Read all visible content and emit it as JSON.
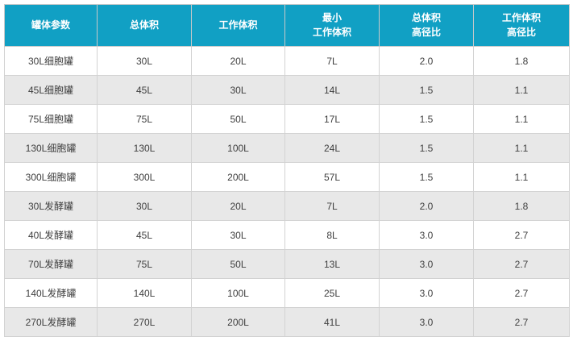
{
  "chart_data": {
    "type": "table",
    "columns": [
      "罐体参数",
      "总体积",
      "工作体积",
      "最小\n工作体积",
      "总体积\n高径比",
      "工作体积\n高径比"
    ],
    "rows": [
      [
        "30L细胞罐",
        "30L",
        "20L",
        "7L",
        "2.0",
        "1.8"
      ],
      [
        "45L细胞罐",
        "45L",
        "30L",
        "14L",
        "1.5",
        "1.1"
      ],
      [
        "75L细胞罐",
        "75L",
        "50L",
        "17L",
        "1.5",
        "1.1"
      ],
      [
        "130L细胞罐",
        "130L",
        "100L",
        "24L",
        "1.5",
        "1.1"
      ],
      [
        "300L细胞罐",
        "300L",
        "200L",
        "57L",
        "1.5",
        "1.1"
      ],
      [
        "30L发酵罐",
        "30L",
        "20L",
        "7L",
        "2.0",
        "1.8"
      ],
      [
        "40L发酵罐",
        "45L",
        "30L",
        "8L",
        "3.0",
        "2.7"
      ],
      [
        "70L发酵罐",
        "75L",
        "50L",
        "13L",
        "3.0",
        "2.7"
      ],
      [
        "140L发酵罐",
        "140L",
        "100L",
        "25L",
        "3.0",
        "2.7"
      ],
      [
        "270L发酵罐",
        "270L",
        "200L",
        "41L",
        "3.0",
        "2.7"
      ]
    ]
  },
  "colors": {
    "header_bg": "#11a0c4",
    "header_text": "#ffffff",
    "row_alt_bg": "#e8e8e8",
    "row_bg": "#ffffff",
    "border": "#d2d2d2",
    "body_text": "#404040"
  }
}
